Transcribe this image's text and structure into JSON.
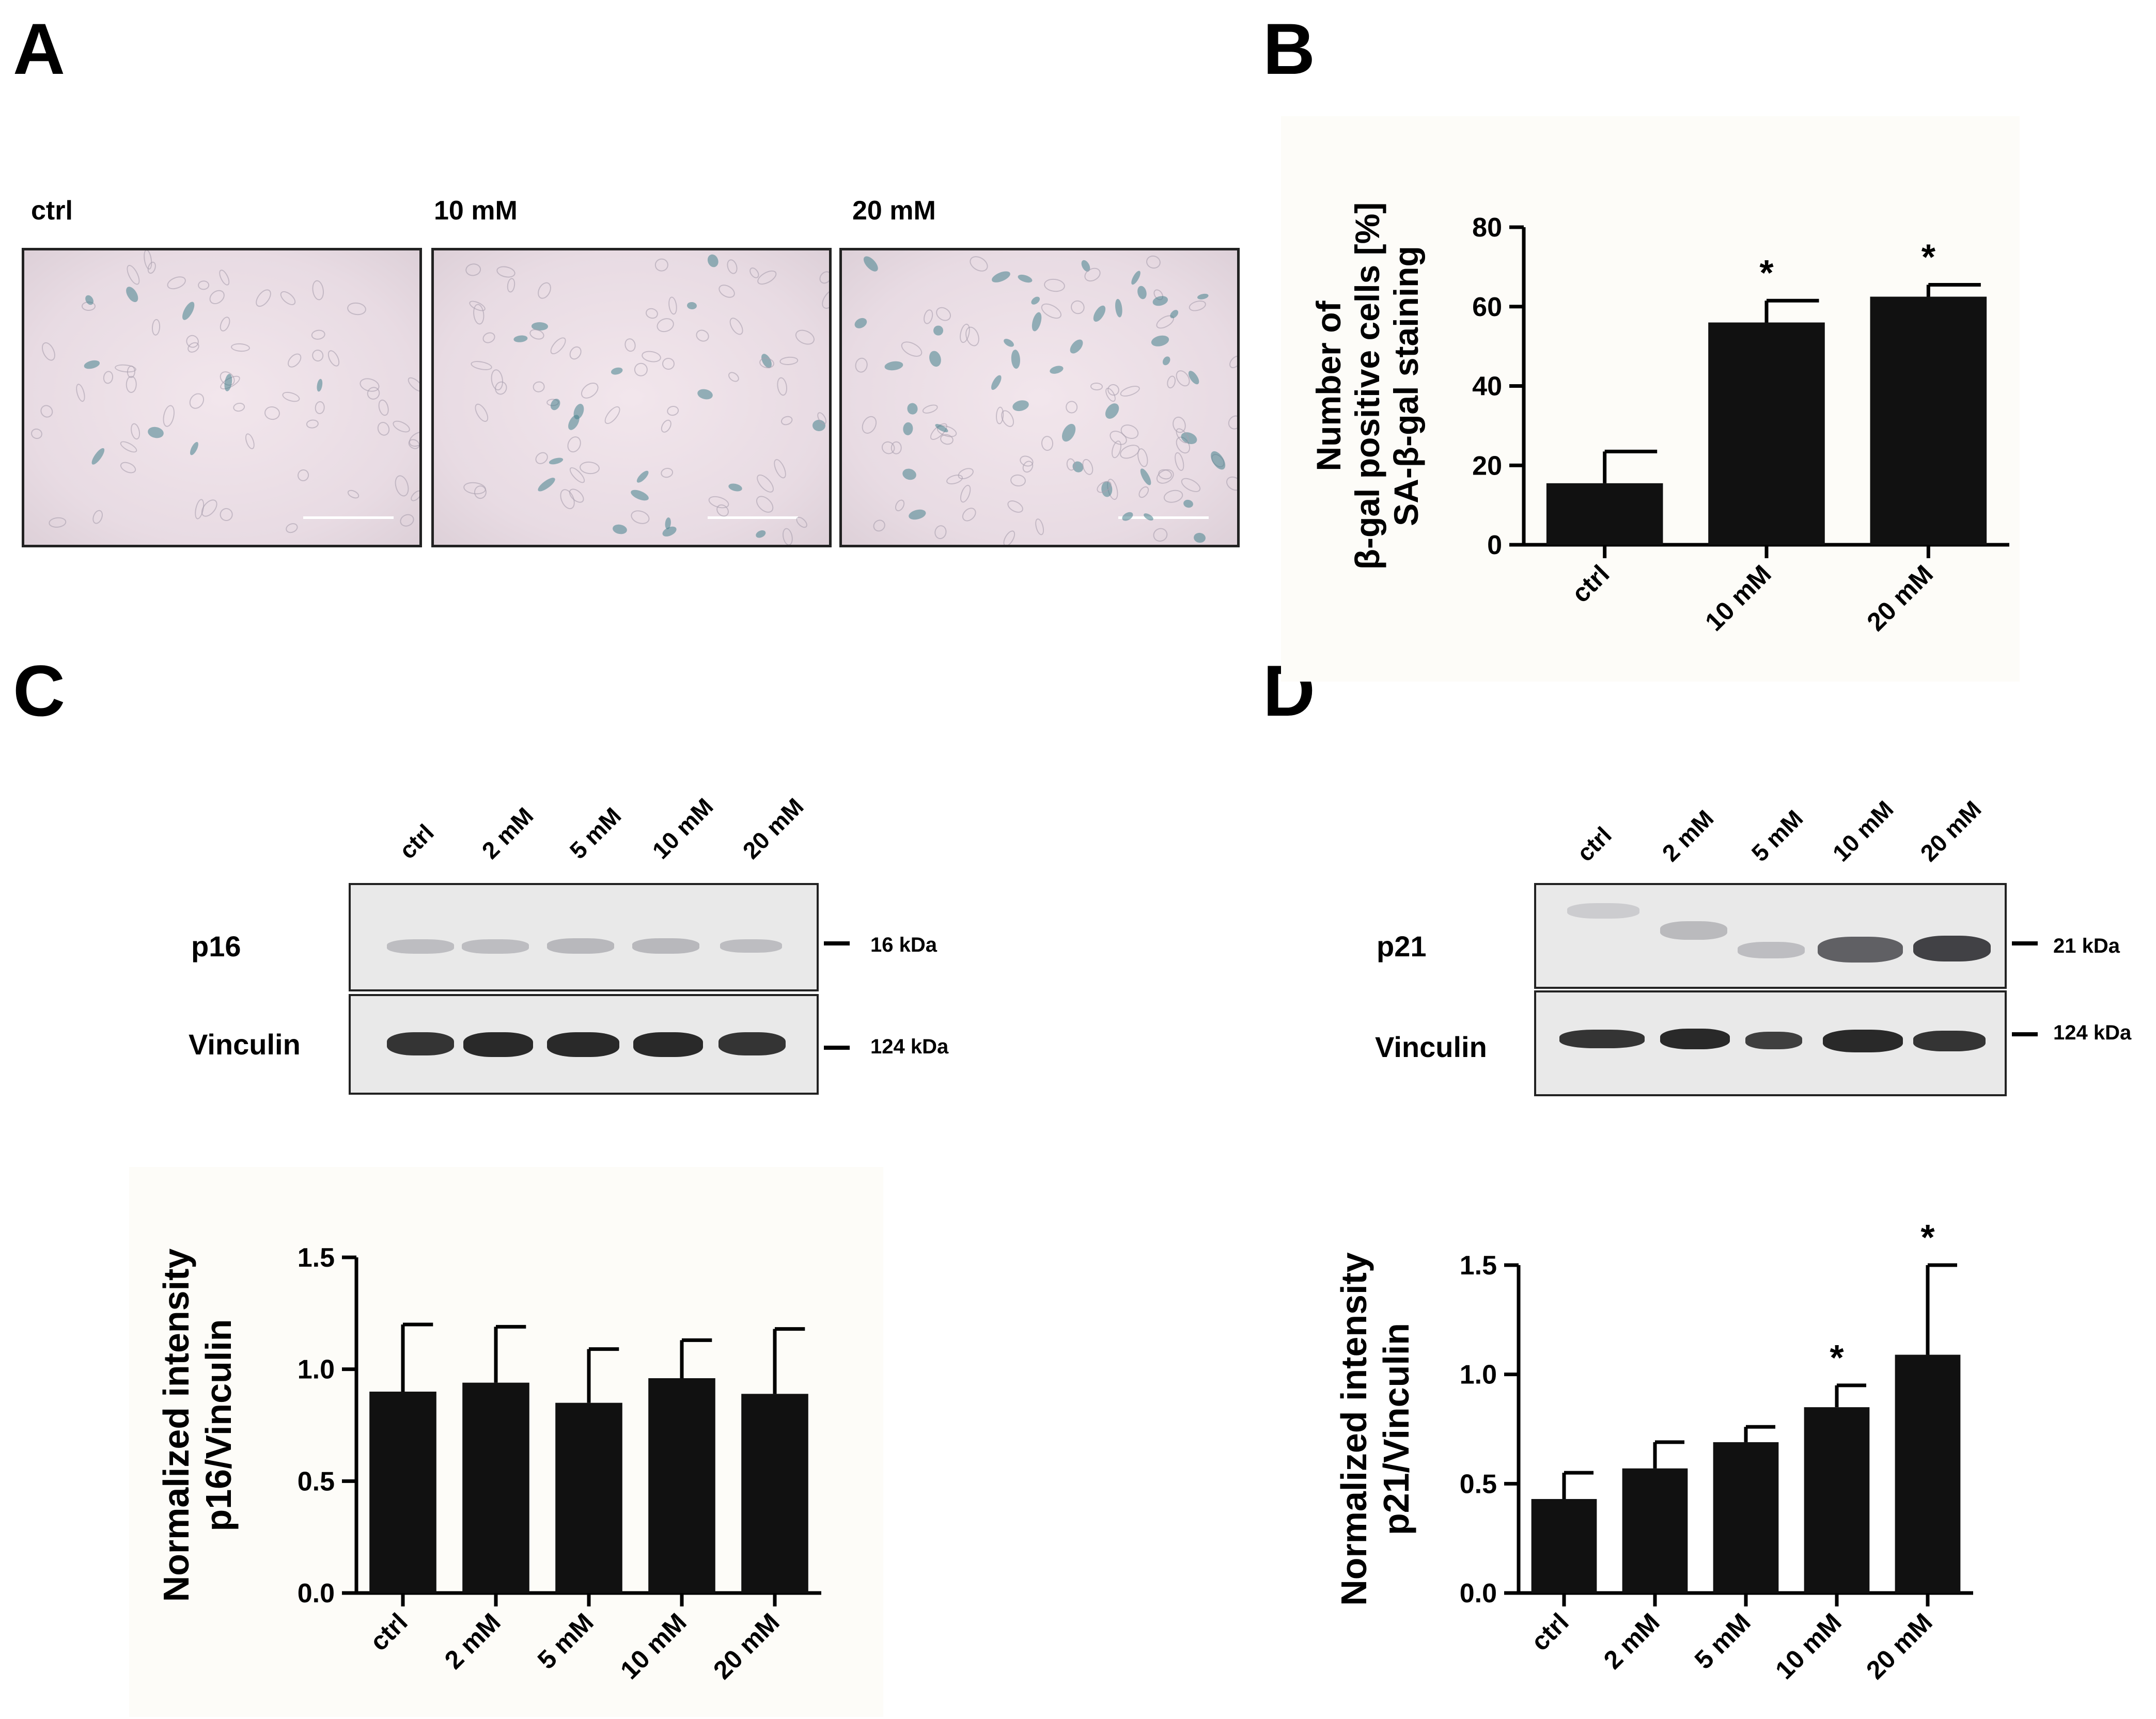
{
  "panels": {
    "A": {
      "letter": "A",
      "images": [
        {
          "label": "ctrl"
        },
        {
          "label": "10 mM"
        },
        {
          "label": "20 mM"
        }
      ]
    },
    "B": {
      "letter": "B"
    },
    "C": {
      "letter": "C",
      "lanes": [
        "ctrl",
        "2 mM",
        "5 mM",
        "10 mM",
        "20 mM"
      ],
      "rows": [
        {
          "label": "p16",
          "kda": "16 kDa"
        },
        {
          "label": "Vinculin",
          "kda": "124 kDa"
        }
      ]
    },
    "D": {
      "letter": "D",
      "lanes": [
        "ctrl",
        "2 mM",
        "5 mM",
        "10 mM",
        "20 mM"
      ],
      "rows": [
        {
          "label": "p21",
          "kda": "21 kDa"
        },
        {
          "label": "Vinculin",
          "kda": "124 kDa"
        }
      ]
    }
  },
  "chart_data": [
    {
      "id": "B",
      "type": "bar",
      "categories": [
        "ctrl",
        "10 mM",
        "20 mM"
      ],
      "values": [
        15.5,
        56,
        62.5
      ],
      "errors": [
        8,
        5.5,
        3
      ],
      "significance": [
        "",
        "*",
        "*"
      ],
      "ylabel_lines": [
        "Number of",
        "β-gal positive cells [%]",
        "SA-β-gal staining"
      ],
      "ylim": [
        0,
        80
      ],
      "yticks": [
        0,
        20,
        40,
        60,
        80
      ],
      "ytick_labels": [
        "0",
        "20",
        "40",
        "60",
        "80"
      ],
      "bar_color": "#111111"
    },
    {
      "id": "C",
      "type": "bar",
      "categories": [
        "ctrl",
        "2 mM",
        "5 mM",
        "10 mM",
        "20 mM"
      ],
      "values": [
        0.9,
        0.94,
        0.85,
        0.96,
        0.89
      ],
      "errors": [
        0.3,
        0.25,
        0.24,
        0.17,
        0.29
      ],
      "significance": [
        "",
        "",
        "",
        "",
        ""
      ],
      "ylabel_lines": [
        "Normalized intensity",
        "p16/Vinculin"
      ],
      "ylim": [
        0,
        1.5
      ],
      "yticks": [
        0,
        0.5,
        1.0,
        1.5
      ],
      "ytick_labels": [
        "0.0",
        "0.5",
        "1.0",
        "1.5"
      ],
      "bar_color": "#111111"
    },
    {
      "id": "D",
      "type": "bar",
      "categories": [
        "ctrl",
        "2 mM",
        "5 mM",
        "10 mM",
        "20 mM"
      ],
      "values": [
        0.43,
        0.57,
        0.69,
        0.85,
        1.09
      ],
      "errors": [
        0.12,
        0.12,
        0.07,
        0.1,
        0.41
      ],
      "significance": [
        "",
        "",
        "",
        "*",
        "*"
      ],
      "ylabel_lines": [
        "Normalized intensity",
        "p21/Vinculin"
      ],
      "ylim": [
        0,
        1.5
      ],
      "yticks": [
        0,
        0.5,
        1.0,
        1.5
      ],
      "ytick_labels": [
        "0.0",
        "0.5",
        "1.0",
        "1.5"
      ],
      "bar_color": "#111111"
    }
  ]
}
